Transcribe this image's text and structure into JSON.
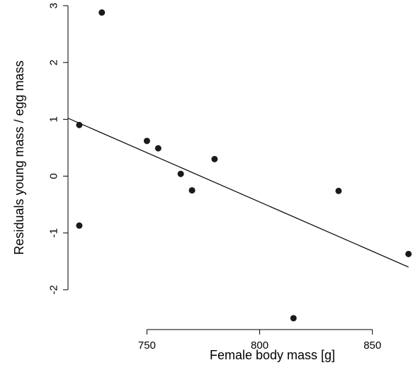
{
  "chart_data": {
    "type": "scatter",
    "title": "",
    "xlabel": "Female body mass [g]",
    "ylabel": "Residuals young mass / egg mass",
    "xlim": [
      715,
      868
    ],
    "ylim": [
      -2.7,
      3.1
    ],
    "x_ticks": [
      750,
      800,
      850
    ],
    "x_tick_labels": [
      "750",
      "800",
      "850"
    ],
    "y_ticks": [
      -2,
      -1,
      0,
      1,
      2,
      3
    ],
    "y_tick_labels": [
      "-2",
      "-1",
      "0",
      "1",
      "2",
      "3"
    ],
    "grid": false,
    "legend": "none",
    "series": [
      {
        "x": [
          720,
          720,
          730,
          750,
          755,
          765,
          770,
          780,
          815,
          835,
          866
        ],
        "y": [
          0.9,
          -0.87,
          2.88,
          0.62,
          0.49,
          0.04,
          -0.25,
          0.3,
          -2.5,
          -0.26,
          -1.37
        ]
      }
    ],
    "regression_line": {
      "x": [
        715,
        866
      ],
      "y": [
        1.02,
        -1.6
      ]
    }
  }
}
